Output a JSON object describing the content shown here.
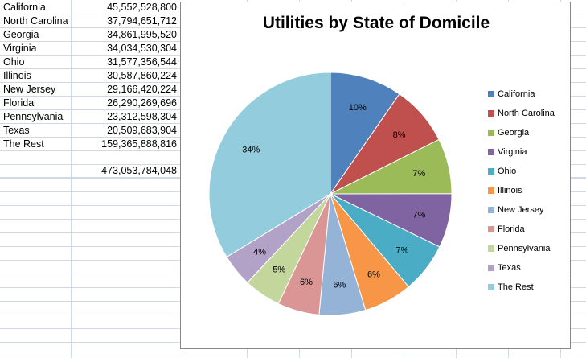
{
  "sheet": {
    "rows": [
      {
        "name": "California",
        "value": "45,552,528,800"
      },
      {
        "name": "North Carolina",
        "value": "37,794,651,712"
      },
      {
        "name": "Georgia",
        "value": "34,861,995,520"
      },
      {
        "name": "Virginia",
        "value": "34,034,530,304"
      },
      {
        "name": "Ohio",
        "value": "31,577,356,544"
      },
      {
        "name": "Illinois",
        "value": "30,587,860,224"
      },
      {
        "name": "New Jersey",
        "value": "29,166,420,224"
      },
      {
        "name": "Florida",
        "value": "26,290,269,696"
      },
      {
        "name": "Pennsylvania",
        "value": "23,312,598,304"
      },
      {
        "name": "Texas",
        "value": "20,509,683,904"
      },
      {
        "name": "The Rest",
        "value": "159,365,888,816"
      }
    ],
    "total": "473,053,784,048"
  },
  "chart_data": {
    "type": "pie",
    "title": "Utilities by State of Domicile",
    "legend_position": "right",
    "categories": [
      "California",
      "North Carolina",
      "Georgia",
      "Virginia",
      "Ohio",
      "Illinois",
      "New Jersey",
      "Florida",
      "Pennsylvania",
      "Texas",
      "The Rest"
    ],
    "values": [
      45552528800,
      37794651712,
      34861995520,
      34034530304,
      31577356544,
      30587860224,
      29166420224,
      26290269696,
      23312598304,
      20509683904,
      159365888816
    ],
    "data_labels": [
      "10%",
      "8%",
      "7%",
      "7%",
      "7%",
      "6%",
      "6%",
      "6%",
      "5%",
      "4%",
      "34%"
    ],
    "colors": [
      "#4f81bd",
      "#c0504d",
      "#9bbb59",
      "#8064a2",
      "#4bacc6",
      "#f79646",
      "#95b3d7",
      "#d99694",
      "#c3d69b",
      "#b2a2c7",
      "#93cddd"
    ]
  }
}
